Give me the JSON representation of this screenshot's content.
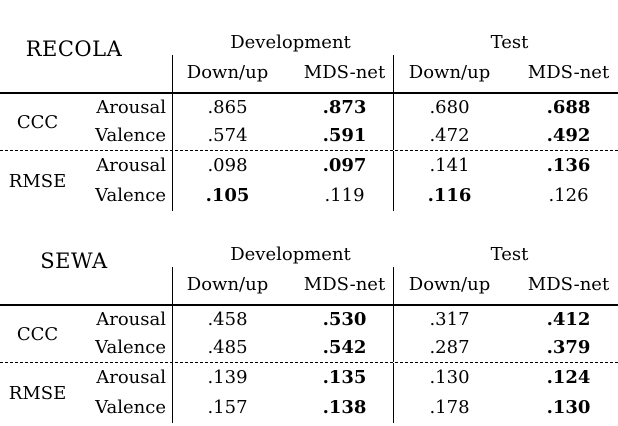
{
  "tables": [
    {
      "title": "RECOLA",
      "col_groups": [
        "Development",
        "Test"
      ],
      "sub_cols": [
        "Down/up",
        "MDS-net",
        "Down/up",
        "MDS-net"
      ],
      "groups": [
        {
          "metric": "CCC",
          "rows": [
            {
              "label": "Arousal",
              "cells": [
                {
                  "v": ".865",
                  "bold": "false"
                },
                {
                  "v": ".873",
                  "bold": "true"
                },
                {
                  "v": ".680",
                  "bold": "false"
                },
                {
                  "v": ".688",
                  "bold": "true"
                }
              ]
            },
            {
              "label": "Valence",
              "cells": [
                {
                  "v": ".574",
                  "bold": "false"
                },
                {
                  "v": ".591",
                  "bold": "true"
                },
                {
                  "v": ".472",
                  "bold": "false"
                },
                {
                  "v": ".492",
                  "bold": "true"
                }
              ]
            }
          ]
        },
        {
          "metric": "RMSE",
          "rows": [
            {
              "label": "Arousal",
              "cells": [
                {
                  "v": ".098",
                  "bold": "false"
                },
                {
                  "v": ".097",
                  "bold": "true"
                },
                {
                  "v": ".141",
                  "bold": "false"
                },
                {
                  "v": ".136",
                  "bold": "true"
                }
              ]
            },
            {
              "label": "Valence",
              "cells": [
                {
                  "v": ".105",
                  "bold": "true"
                },
                {
                  "v": ".119",
                  "bold": "false"
                },
                {
                  "v": ".116",
                  "bold": "true"
                },
                {
                  "v": ".126",
                  "bold": "false"
                }
              ]
            }
          ]
        }
      ]
    },
    {
      "title": "SEWA",
      "col_groups": [
        "Development",
        "Test"
      ],
      "sub_cols": [
        "Down/up",
        "MDS-net",
        "Down/up",
        "MDS-net"
      ],
      "groups": [
        {
          "metric": "CCC",
          "rows": [
            {
              "label": "Arousal",
              "cells": [
                {
                  "v": ".458",
                  "bold": "false"
                },
                {
                  "v": ".530",
                  "bold": "true"
                },
                {
                  "v": ".317",
                  "bold": "false"
                },
                {
                  "v": ".412",
                  "bold": "true"
                }
              ]
            },
            {
              "label": "Valence",
              "cells": [
                {
                  "v": ".485",
                  "bold": "false"
                },
                {
                  "v": ".542",
                  "bold": "true"
                },
                {
                  "v": ".287",
                  "bold": "false"
                },
                {
                  "v": ".379",
                  "bold": "true"
                }
              ]
            }
          ]
        },
        {
          "metric": "RMSE",
          "rows": [
            {
              "label": "Arousal",
              "cells": [
                {
                  "v": ".139",
                  "bold": "false"
                },
                {
                  "v": ".135",
                  "bold": "true"
                },
                {
                  "v": ".130",
                  "bold": "false"
                },
                {
                  "v": ".124",
                  "bold": "true"
                }
              ]
            },
            {
              "label": "Valence",
              "cells": [
                {
                  "v": ".157",
                  "bold": "false"
                },
                {
                  "v": ".138",
                  "bold": "true"
                },
                {
                  "v": ".178",
                  "bold": "false"
                },
                {
                  "v": ".130",
                  "bold": "true"
                }
              ]
            }
          ]
        }
      ]
    }
  ]
}
